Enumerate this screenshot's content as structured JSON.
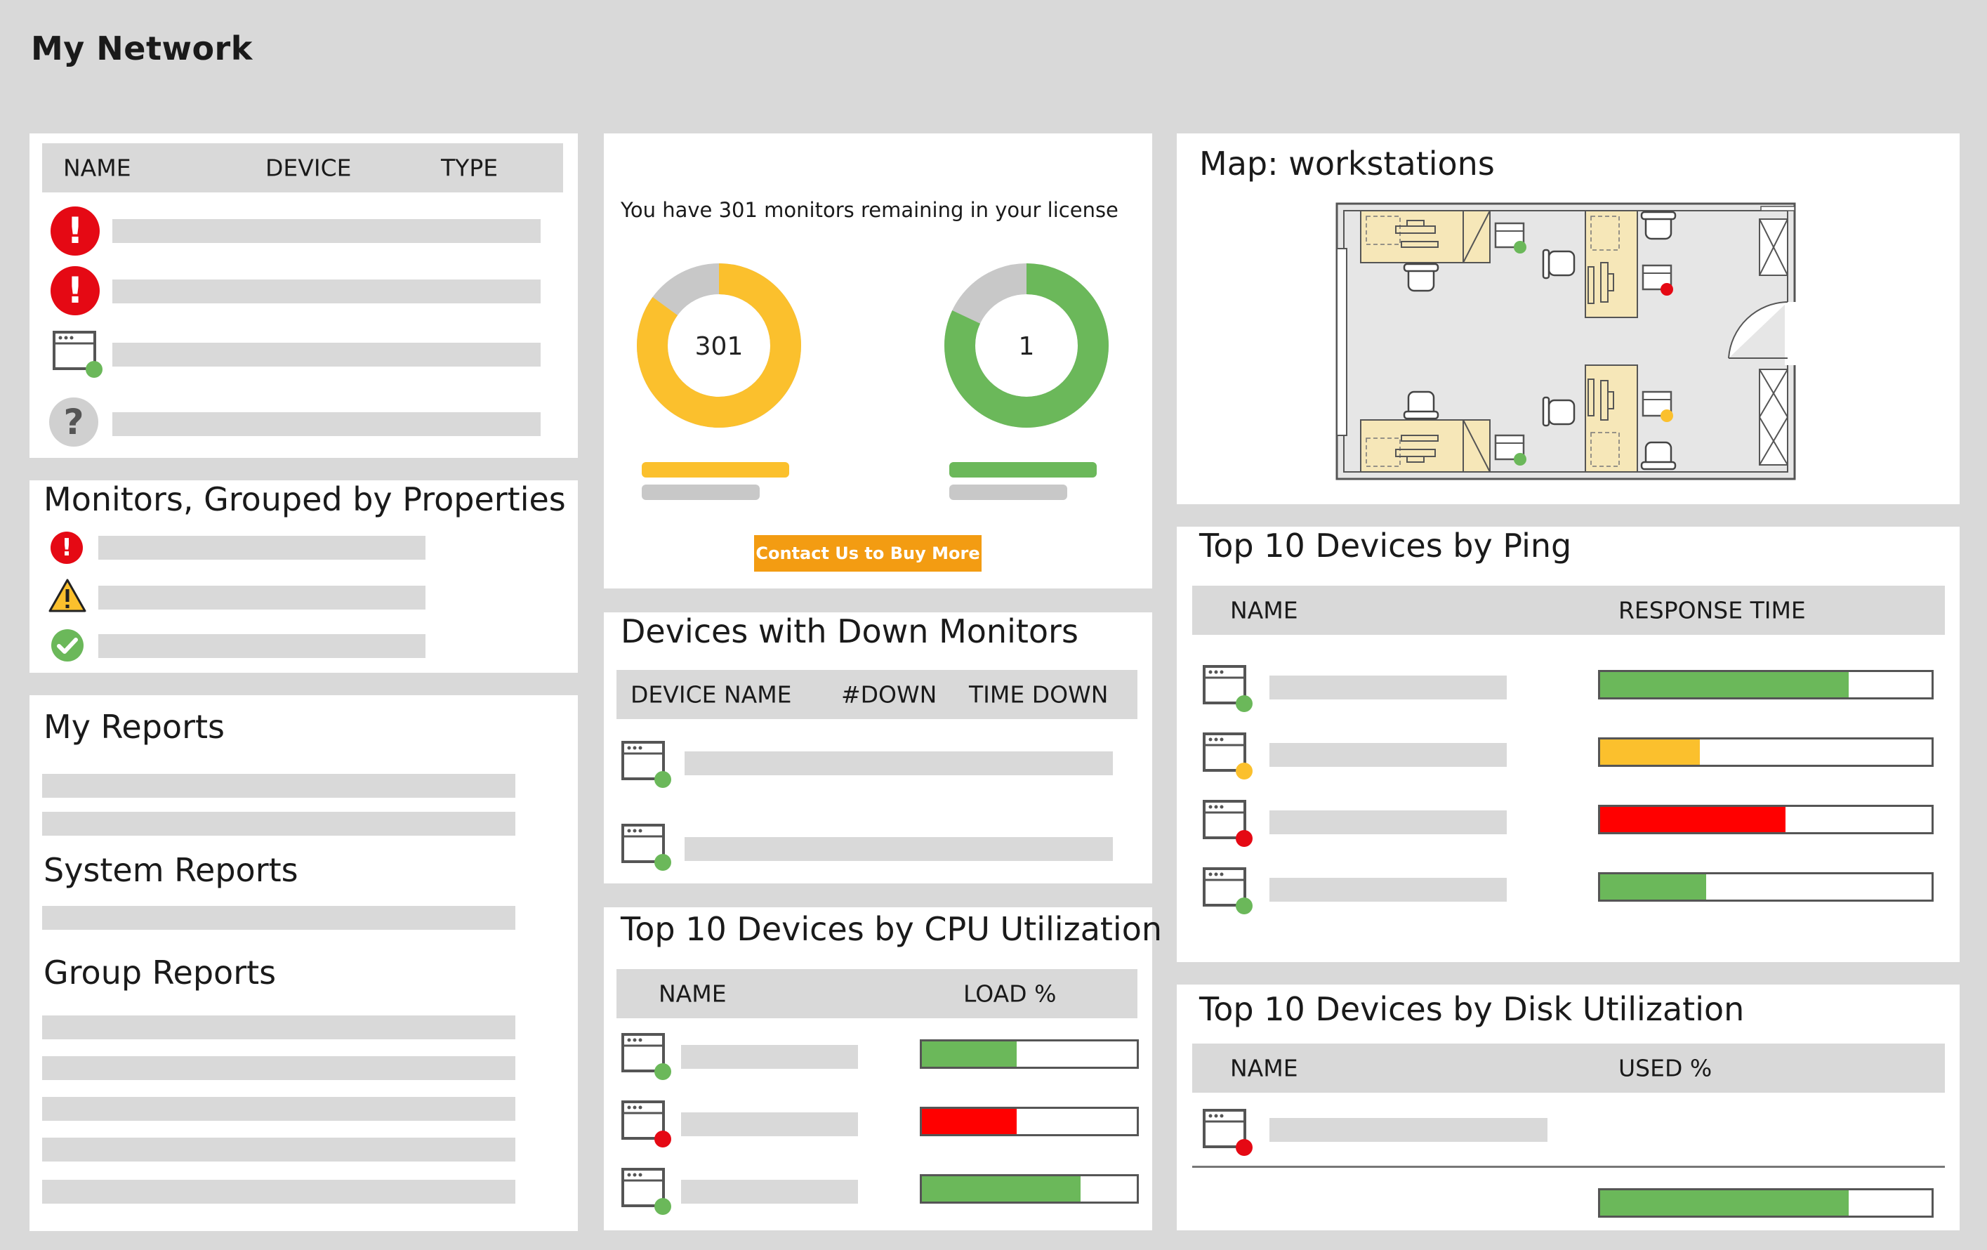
{
  "page_title": "My Network",
  "status_table": {
    "headers": [
      "NAME",
      "DEVICE",
      "TYPE"
    ],
    "rows": [
      {
        "icon": "error-icon"
      },
      {
        "icon": "error-icon"
      },
      {
        "icon": "device-ok-icon"
      },
      {
        "icon": "unknown-icon"
      }
    ]
  },
  "monitors_grouped": {
    "title": "Monitors, Grouped by Properties",
    "rows": [
      {
        "icon": "error-icon"
      },
      {
        "icon": "warning-icon"
      },
      {
        "icon": "check-icon"
      }
    ]
  },
  "reports": {
    "my_reports": "My Reports",
    "system_reports": "System Reports",
    "group_reports": "Group Reports"
  },
  "license": {
    "text": "You have 301 monitors remaining in your license",
    "donut_left": {
      "label": "301",
      "fraction": 0.85,
      "color": "#fbc02d",
      "rest_color": "#c8c8c8"
    },
    "donut_right": {
      "label": "1",
      "fraction": 0.82,
      "color": "#6bb85a",
      "rest_color": "#c8c8c8"
    },
    "button": "Contact Us to Buy More"
  },
  "down_monitors": {
    "title": "Devices with Down Monitors",
    "headers": [
      "DEVICE NAME",
      "#DOWN",
      "TIME DOWN"
    ]
  },
  "cpu": {
    "title": "Top 10 Devices by CPU Utilization",
    "headers": [
      "NAME",
      "LOAD %"
    ],
    "rows": [
      {
        "status": "#6bb85a",
        "load": 0.44,
        "color": "#6bb85a"
      },
      {
        "status": "#e50914",
        "load": 0.44,
        "color": "#ff0000"
      },
      {
        "status": "#6bb85a",
        "load": 0.74,
        "color": "#6bb85a"
      }
    ]
  },
  "map": {
    "title": "Map: workstations"
  },
  "ping": {
    "title": "Top 10 Devices by Ping",
    "headers": [
      "NAME",
      "RESPONSE TIME"
    ],
    "rows": [
      {
        "status": "#6bb85a",
        "value": 0.75,
        "color": "#6bb85a"
      },
      {
        "status": "#fbc02d",
        "value": 0.3,
        "color": "#fbc02d"
      },
      {
        "status": "#e50914",
        "value": 0.56,
        "color": "#ff0000"
      },
      {
        "status": "#6bb85a",
        "value": 0.32,
        "color": "#6bb85a"
      }
    ]
  },
  "disk": {
    "title": "Top 10 Devices by Disk Utilization",
    "headers": [
      "NAME",
      "USED %"
    ],
    "rows": [
      {
        "status": "#e50914",
        "value": 0.75,
        "color": "#6bb85a"
      }
    ]
  }
}
